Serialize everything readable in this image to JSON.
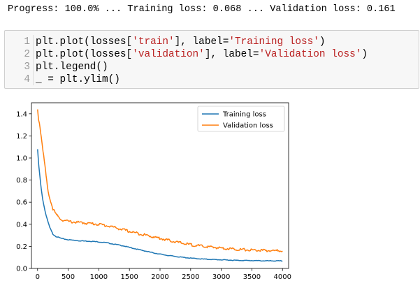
{
  "output": {
    "progress_line": "Progress: 100.0% ... Training loss: 0.068 ... Validation loss: 0.161"
  },
  "code_cell": {
    "lines": [
      {
        "number": "1",
        "parts": [
          {
            "t": "plt.plot(losses[",
            "k": "code"
          },
          {
            "t": "'train'",
            "k": "string"
          },
          {
            "t": "], label=",
            "k": "code"
          },
          {
            "t": "'Training loss'",
            "k": "string"
          },
          {
            "t": ")",
            "k": "code"
          }
        ]
      },
      {
        "number": "2",
        "parts": [
          {
            "t": "plt.plot(losses[",
            "k": "code"
          },
          {
            "t": "'validation'",
            "k": "string"
          },
          {
            "t": "], label=",
            "k": "code"
          },
          {
            "t": "'Validation loss'",
            "k": "string"
          },
          {
            "t": ")",
            "k": "code"
          }
        ]
      },
      {
        "number": "3",
        "parts": [
          {
            "t": "plt.legend()",
            "k": "code"
          }
        ]
      },
      {
        "number": "4",
        "parts": [
          {
            "t": "_ = plt.ylim()",
            "k": "code"
          }
        ]
      }
    ]
  },
  "colors": {
    "string": "#ba2121",
    "training": "#1f77b4",
    "validation": "#ff7f0e"
  },
  "chart_data": {
    "type": "line",
    "title": "",
    "xlabel": "",
    "ylabel": "",
    "xlim": [
      -100,
      4100
    ],
    "ylim": [
      0.0,
      1.5
    ],
    "xticks": [
      0,
      500,
      1000,
      1500,
      2000,
      2500,
      3000,
      3500,
      4000
    ],
    "yticks": [
      0.0,
      0.2,
      0.4,
      0.6,
      0.8,
      1.0,
      1.2,
      1.4
    ],
    "xtick_labels": [
      "0",
      "500",
      "1000",
      "1500",
      "2000",
      "2500",
      "3000",
      "3500",
      "4000"
    ],
    "ytick_labels": [
      "0.0",
      "0.2",
      "0.4",
      "0.6",
      "0.8",
      "1.0",
      "1.2",
      "1.4"
    ],
    "grid": false,
    "legend_position": "top-right",
    "series": [
      {
        "name": "Training loss",
        "color": "#1f77b4",
        "x": [
          0,
          20,
          40,
          60,
          80,
          100,
          130,
          160,
          200,
          250,
          300,
          350,
          400,
          500,
          600,
          700,
          800,
          900,
          1000,
          1100,
          1200,
          1300,
          1400,
          1500,
          1700,
          1900,
          2100,
          2300,
          2500,
          2700,
          2900,
          3100,
          3300,
          3500,
          3700,
          3900,
          4000
        ],
        "y": [
          1.08,
          0.93,
          0.82,
          0.72,
          0.64,
          0.58,
          0.5,
          0.44,
          0.37,
          0.31,
          0.29,
          0.28,
          0.27,
          0.26,
          0.255,
          0.25,
          0.248,
          0.245,
          0.24,
          0.235,
          0.225,
          0.215,
          0.205,
          0.19,
          0.165,
          0.14,
          0.12,
          0.105,
          0.093,
          0.085,
          0.08,
          0.076,
          0.073,
          0.071,
          0.069,
          0.068,
          0.068
        ]
      },
      {
        "name": "Validation loss",
        "color": "#ff7f0e",
        "x": [
          0,
          15,
          30,
          50,
          70,
          100,
          130,
          160,
          200,
          250,
          300,
          350,
          400,
          500,
          600,
          700,
          800,
          900,
          1000,
          1100,
          1200,
          1300,
          1400,
          1500,
          1700,
          1900,
          2100,
          2300,
          2500,
          2700,
          2900,
          3100,
          3300,
          3500,
          3700,
          3900,
          4000
        ],
        "y": [
          1.44,
          1.35,
          1.32,
          1.24,
          1.15,
          1.02,
          0.88,
          0.74,
          0.63,
          0.54,
          0.49,
          0.46,
          0.44,
          0.425,
          0.42,
          0.415,
          0.41,
          0.405,
          0.4,
          0.39,
          0.38,
          0.365,
          0.35,
          0.335,
          0.31,
          0.285,
          0.26,
          0.235,
          0.215,
          0.2,
          0.19,
          0.18,
          0.172,
          0.166,
          0.162,
          0.16,
          0.161
        ]
      }
    ]
  }
}
